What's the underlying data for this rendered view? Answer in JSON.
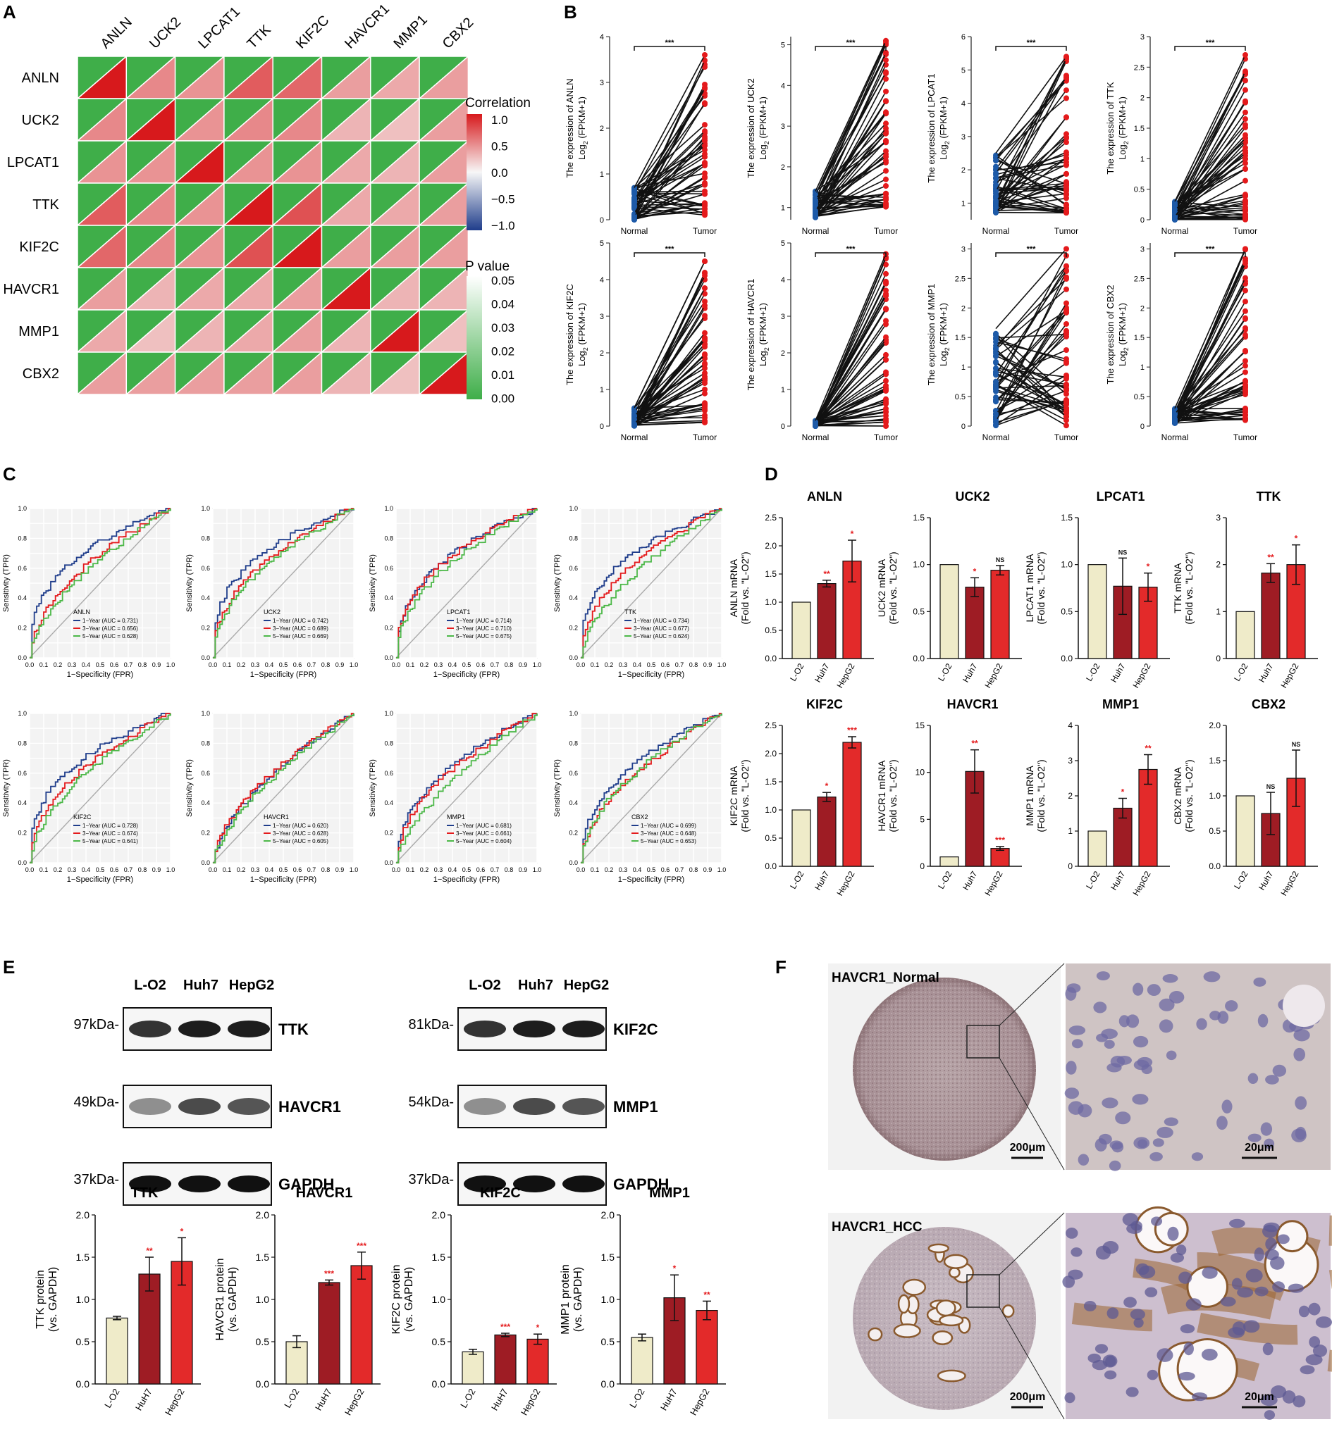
{
  "panels": {
    "A": "A",
    "B": "B",
    "C": "C",
    "D": "D",
    "E": "E",
    "F": "F"
  },
  "genes": [
    "ANLN",
    "UCK2",
    "LPCAT1",
    "TTK",
    "KIF2C",
    "HAVCR1",
    "MMP1",
    "CBX2"
  ],
  "legend": {
    "correlation_title": "Correlation",
    "correlation_ticks": [
      "1.0",
      "0.5",
      "0.0",
      "−0.5",
      "−1.0"
    ],
    "pvalue_title": "P value",
    "pvalue_ticks": [
      "0.05",
      "0.04",
      "0.03",
      "0.02",
      "0.01",
      "0.00"
    ]
  },
  "colors": {
    "green": "#3fae49",
    "red": "#d7191c",
    "blue": "#1f3d8b",
    "navy": "#1a2f8e",
    "cream": "#efebc9",
    "darkred": "#9e1c24",
    "brightred": "#e32a2a",
    "roc_green": "#4cb848",
    "roc_red": "#e41a1c"
  },
  "chart_data": [
    {
      "id": "A",
      "type": "heatmap",
      "rows": [
        "ANLN",
        "UCK2",
        "LPCAT1",
        "TTK",
        "KIF2C",
        "HAVCR1",
        "MMP1",
        "CBX2"
      ],
      "cols": [
        "ANLN",
        "UCK2",
        "LPCAT1",
        "TTK",
        "KIF2C",
        "HAVCR1",
        "MMP1",
        "CBX2"
      ],
      "correlation": [
        [
          1.0,
          0.5,
          0.45,
          0.7,
          0.65,
          0.4,
          0.35,
          0.4
        ],
        [
          0.5,
          1.0,
          0.45,
          0.5,
          0.5,
          0.3,
          0.25,
          0.4
        ],
        [
          0.45,
          0.45,
          1.0,
          0.45,
          0.45,
          0.35,
          0.3,
          0.4
        ],
        [
          0.7,
          0.5,
          0.45,
          1.0,
          0.75,
          0.35,
          0.35,
          0.4
        ],
        [
          0.65,
          0.5,
          0.45,
          0.75,
          1.0,
          0.4,
          0.4,
          0.4
        ],
        [
          0.4,
          0.3,
          0.35,
          0.35,
          0.4,
          1.0,
          0.3,
          0.3
        ],
        [
          0.35,
          0.25,
          0.3,
          0.35,
          0.4,
          0.3,
          1.0,
          0.25
        ],
        [
          0.4,
          0.4,
          0.4,
          0.4,
          0.4,
          0.3,
          0.25,
          1.0
        ]
      ],
      "pvalue_all": 0.0,
      "legend_title": "Correlation",
      "legend_title_2": "P value"
    },
    {
      "id": "B",
      "type": "line",
      "xcategories": [
        "Normal",
        "Tumor"
      ],
      "annotation": "***",
      "subplots": [
        {
          "gene": "ANLN",
          "ylim": [
            0,
            4
          ],
          "yticks": [
            0,
            1,
            2,
            3,
            4
          ],
          "normal_range": [
            0.0,
            0.7
          ],
          "tumor_range": [
            0.1,
            3.6
          ]
        },
        {
          "gene": "UCK2",
          "ylim": [
            0.7,
            5.2
          ],
          "yticks": [
            1,
            2,
            3,
            4,
            5
          ],
          "normal_range": [
            0.75,
            1.4
          ],
          "tumor_range": [
            1.0,
            5.1
          ]
        },
        {
          "gene": "LPCAT1",
          "ylim": [
            0.5,
            6
          ],
          "yticks": [
            1,
            2,
            3,
            4,
            5,
            6
          ],
          "normal_range": [
            0.7,
            2.5
          ],
          "tumor_range": [
            0.7,
            5.4
          ]
        },
        {
          "gene": "TTK",
          "ylim": [
            0,
            3.0
          ],
          "yticks": [
            0.0,
            0.5,
            1.0,
            1.5,
            2.0,
            2.5,
            3.0
          ],
          "normal_range": [
            0.0,
            0.3
          ],
          "tumor_range": [
            0.0,
            2.7
          ]
        },
        {
          "gene": "KIF2C",
          "ylim": [
            0,
            5
          ],
          "yticks": [
            0,
            1,
            2,
            3,
            4,
            5
          ],
          "normal_range": [
            0.0,
            0.5
          ],
          "tumor_range": [
            0.1,
            4.5
          ]
        },
        {
          "gene": "HAVCR1",
          "ylim": [
            0,
            5
          ],
          "yticks": [
            0,
            1,
            2,
            3,
            4,
            5
          ],
          "normal_range": [
            0.0,
            0.15
          ],
          "tumor_range": [
            0.0,
            4.7
          ]
        },
        {
          "gene": "MMP1",
          "ylim": [
            0,
            3.1
          ],
          "yticks": [
            0.0,
            0.5,
            1.0,
            1.5,
            2.0,
            2.5,
            3.0
          ],
          "normal_range": [
            0.0,
            1.65
          ],
          "tumor_range": [
            0.0,
            3.0
          ]
        },
        {
          "gene": "CBX2",
          "ylim": [
            0,
            3.1
          ],
          "yticks": [
            0.0,
            0.5,
            1.0,
            1.5,
            2.0,
            2.5,
            3.0
          ],
          "normal_range": [
            0.05,
            0.3
          ],
          "tumor_range": [
            0.1,
            3.0
          ]
        }
      ],
      "ylabel_1": "The expression of {gene}",
      "ylabel_2": "Log",
      "ylabel_sub": "2",
      "ylabel_3": " (FPKM+1)"
    },
    {
      "id": "C",
      "type": "line",
      "xlabel": "1−Specificity (FPR)",
      "ylabel": "Sensitivity (TPR)",
      "ticks": [
        "0.0",
        "0.1",
        "0.2",
        "0.3",
        "0.4",
        "0.5",
        "0.6",
        "0.7",
        "0.8",
        "0.9",
        "1.0"
      ],
      "yticks": [
        "0.0",
        "0.2",
        "0.4",
        "0.6",
        "0.8",
        "1.0"
      ],
      "series_names": [
        "1−Year",
        "3−Year",
        "5−Year"
      ],
      "subplots": [
        {
          "gene": "ANLN",
          "auc": [
            "0.731",
            "0.656",
            "0.628"
          ]
        },
        {
          "gene": "UCK2",
          "auc": [
            "0.742",
            "0.689",
            "0.669"
          ]
        },
        {
          "gene": "LPCAT1",
          "auc": [
            "0.714",
            "0.710",
            "0.675"
          ]
        },
        {
          "gene": "TTK",
          "auc": [
            "0.734",
            "0.677",
            "0.624"
          ]
        },
        {
          "gene": "KIF2C",
          "auc": [
            "0.728",
            "0.674",
            "0.641"
          ]
        },
        {
          "gene": "HAVCR1",
          "auc": [
            "0.620",
            "0.628",
            "0.605"
          ]
        },
        {
          "gene": "MMP1",
          "auc": [
            "0.681",
            "0.661",
            "0.604"
          ]
        },
        {
          "gene": "CBX2",
          "auc": [
            "0.699",
            "0.648",
            "0.653"
          ]
        }
      ]
    },
    {
      "id": "D",
      "type": "bar",
      "categories": [
        "L-O2",
        "Huh7",
        "HepG2"
      ],
      "ylabel_1": "{gene} mRNA",
      "ylabel_2": "(Fold vs. \"L-O2\")",
      "subplots": [
        {
          "gene": "ANLN",
          "values": [
            1.0,
            1.33,
            1.73
          ],
          "errors": [
            0,
            0.06,
            0.37
          ],
          "sig": [
            "",
            "**",
            "*"
          ],
          "ylim": [
            0,
            2.5
          ],
          "yticks": [
            "0.0",
            "0.5",
            "1.0",
            "1.5",
            "2.0",
            "2.5"
          ]
        },
        {
          "gene": "UCK2",
          "values": [
            1.0,
            0.76,
            0.94
          ],
          "errors": [
            0,
            0.1,
            0.05
          ],
          "sig": [
            "",
            "*",
            "NS"
          ],
          "ylim": [
            0,
            1.5
          ],
          "yticks": [
            "0.0",
            "0.5",
            "1.0",
            "1.5"
          ]
        },
        {
          "gene": "LPCAT1",
          "values": [
            1.0,
            0.77,
            0.76
          ],
          "errors": [
            0,
            0.3,
            0.15
          ],
          "sig": [
            "",
            "NS",
            "*"
          ],
          "ylim": [
            0,
            1.5
          ],
          "yticks": [
            "0.0",
            "0.5",
            "1.0",
            "1.5"
          ]
        },
        {
          "gene": "TTK",
          "values": [
            1.0,
            1.82,
            2.0
          ],
          "errors": [
            0,
            0.2,
            0.42
          ],
          "sig": [
            "",
            "**",
            "*"
          ],
          "ylim": [
            0,
            3
          ],
          "yticks": [
            "0",
            "1",
            "2",
            "3"
          ]
        },
        {
          "gene": "KIF2C",
          "values": [
            1.0,
            1.23,
            2.2
          ],
          "errors": [
            0,
            0.08,
            0.1
          ],
          "sig": [
            "",
            "*",
            "***"
          ],
          "ylim": [
            0,
            2.5
          ],
          "yticks": [
            "0.0",
            "0.5",
            "1.0",
            "1.5",
            "2.0",
            "2.5"
          ]
        },
        {
          "gene": "HAVCR1",
          "values": [
            1.0,
            10.1,
            1.9
          ],
          "errors": [
            0,
            2.3,
            0.2
          ],
          "sig": [
            "",
            "**",
            "***"
          ],
          "ylim": [
            0,
            15
          ],
          "yticks": [
            "0",
            "5",
            "10",
            "15"
          ]
        },
        {
          "gene": "MMP1",
          "values": [
            1.0,
            1.65,
            2.75
          ],
          "errors": [
            0,
            0.28,
            0.42
          ],
          "sig": [
            "",
            "*",
            "**"
          ],
          "ylim": [
            0,
            4
          ],
          "yticks": [
            "0",
            "1",
            "2",
            "3",
            "4"
          ]
        },
        {
          "gene": "CBX2",
          "values": [
            1.0,
            0.75,
            1.25
          ],
          "errors": [
            0,
            0.3,
            0.4
          ],
          "sig": [
            "",
            "NS",
            "NS"
          ],
          "ylim": [
            0,
            2.0
          ],
          "yticks": [
            "0.0",
            "0.5",
            "1.0",
            "1.5",
            "2.0"
          ]
        }
      ]
    },
    {
      "id": "E",
      "type": "bar",
      "categories": [
        "L-O2",
        "HuH7",
        "HepG2"
      ],
      "ylabel_1": "{gene} protein",
      "ylabel_2": "(vs. GAPDH)",
      "subplots": [
        {
          "gene": "TTK",
          "values": [
            0.78,
            1.3,
            1.45
          ],
          "errors": [
            0.02,
            0.2,
            0.28
          ],
          "sig": [
            "",
            "**",
            "*"
          ],
          "ylim": [
            0,
            2.0
          ]
        },
        {
          "gene": "HAVCR1",
          "values": [
            0.5,
            1.2,
            1.4
          ],
          "errors": [
            0.07,
            0.03,
            0.16
          ],
          "sig": [
            "",
            "***",
            "***"
          ],
          "ylim": [
            0,
            2.0
          ]
        },
        {
          "gene": "KIF2C",
          "values": [
            0.38,
            0.58,
            0.53
          ],
          "errors": [
            0.03,
            0.02,
            0.06
          ],
          "sig": [
            "",
            "***",
            "*"
          ],
          "ylim": [
            0,
            2.0
          ]
        },
        {
          "gene": "MMP1",
          "values": [
            0.55,
            1.02,
            0.87
          ],
          "errors": [
            0.04,
            0.27,
            0.11
          ],
          "sig": [
            "",
            "*",
            "**"
          ],
          "ylim": [
            0,
            2.0
          ]
        }
      ],
      "yticks": [
        "0.0",
        "0.5",
        "1.0",
        "1.5",
        "2.0"
      ]
    }
  ],
  "western": {
    "left": {
      "lanes": [
        "L-O2",
        "Huh7",
        "HepG2"
      ],
      "rows": [
        {
          "kda": "97kDa-",
          "label": "TTK"
        },
        {
          "kda": "49kDa-",
          "label": "HAVCR1"
        },
        {
          "kda": "37kDa-",
          "label": "GAPDH"
        }
      ]
    },
    "right": {
      "lanes": [
        "L-O2",
        "Huh7",
        "HepG2"
      ],
      "rows": [
        {
          "kda": "81kDa-",
          "label": "KIF2C"
        },
        {
          "kda": "54kDa-",
          "label": "MMP1"
        },
        {
          "kda": "37kDa-",
          "label": "GAPDH"
        }
      ]
    }
  },
  "ihc": {
    "normal_label": "HAVCR1_Normal",
    "hcc_label": "HAVCR1_HCC",
    "scale_big": "200μm",
    "scale_small": "20μm"
  }
}
